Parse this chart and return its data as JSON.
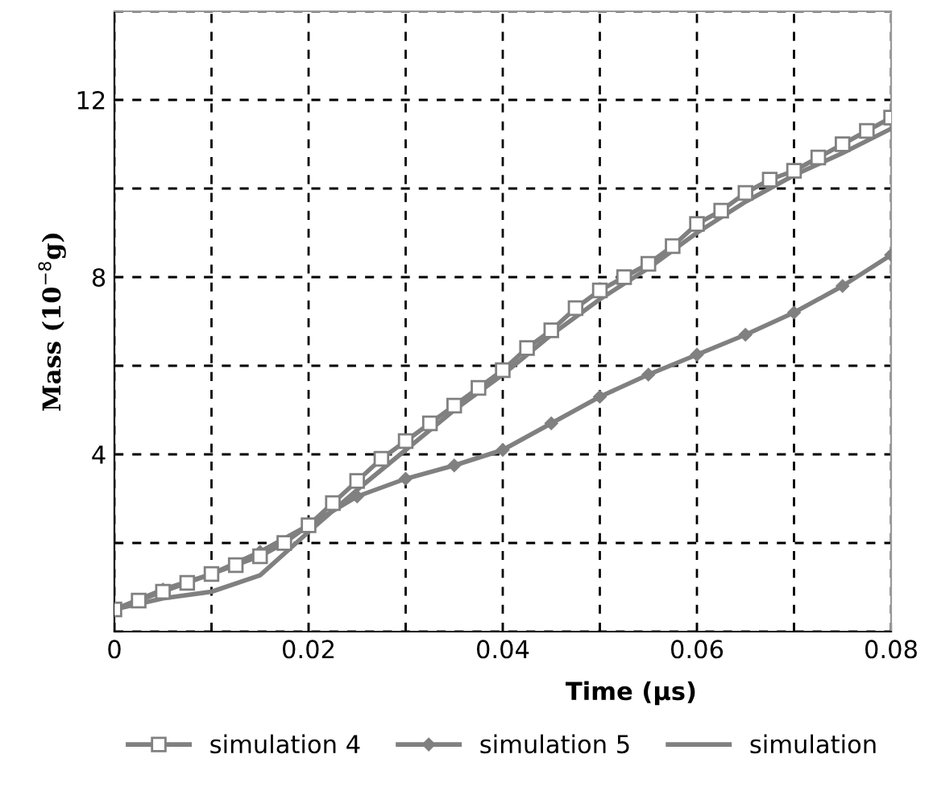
{
  "chart_data": {
    "type": "line",
    "xlabel": "Time (µs)",
    "ylabel": "Mass (10$^{−8}$g)",
    "xlim": [
      0,
      0.08
    ],
    "ylim": [
      0,
      14
    ],
    "xticks": [
      0,
      {
        "value": 0.01,
        "label": null
      },
      0.02,
      {
        "value": 0.03,
        "label": null
      },
      0.04,
      {
        "value": 0.05,
        "label": null
      },
      0.06,
      {
        "value": 0.07,
        "label": null
      },
      0.08
    ],
    "yticks": [
      {
        "value": 0,
        "label": null
      },
      {
        "value": 2,
        "label": null
      },
      4,
      {
        "value": 6,
        "label": null
      },
      8,
      {
        "value": 10,
        "label": null
      },
      12,
      {
        "value": 14,
        "label": null
      }
    ],
    "grid": true,
    "legend": "bottom",
    "series": [
      {
        "name": "simulation 4",
        "color": "#808080",
        "marker": "square",
        "x": [
          0,
          0.0025,
          0.005,
          0.0075,
          0.01,
          0.0125,
          0.015,
          0.0175,
          0.02,
          0.0225,
          0.025,
          0.0275,
          0.03,
          0.0325,
          0.035,
          0.0375,
          0.04,
          0.0425,
          0.045,
          0.0475,
          0.05,
          0.0525,
          0.055,
          0.0575,
          0.06,
          0.0625,
          0.065,
          0.0675,
          0.07,
          0.0725,
          0.075,
          0.0775,
          0.08
        ],
        "values": [
          0.5,
          0.7,
          0.9,
          1.1,
          1.3,
          1.5,
          1.7,
          2.0,
          2.4,
          2.9,
          3.4,
          3.9,
          4.3,
          4.7,
          5.1,
          5.5,
          5.9,
          6.4,
          6.8,
          7.3,
          7.7,
          8.0,
          8.3,
          8.7,
          9.2,
          9.5,
          9.9,
          10.2,
          10.4,
          10.7,
          11.0,
          11.3,
          11.6
        ]
      },
      {
        "name": "simulation 5",
        "color": "#808080",
        "marker": "diamond",
        "x": [
          0,
          0.005,
          0.01,
          0.015,
          0.02,
          0.025,
          0.03,
          0.035,
          0.04,
          0.045,
          0.05,
          0.055,
          0.06,
          0.065,
          0.07,
          0.075,
          0.08
        ],
        "values": [
          0.5,
          0.95,
          1.3,
          1.8,
          2.4,
          3.05,
          3.45,
          3.75,
          4.1,
          4.7,
          5.3,
          5.8,
          6.25,
          6.7,
          7.2,
          7.8,
          8.5
        ]
      },
      {
        "name": "simulation",
        "color": "#808080",
        "marker": "none",
        "x": [
          0,
          0.005,
          0.01,
          0.015,
          0.02,
          0.025,
          0.03,
          0.035,
          0.04,
          0.045,
          0.05,
          0.055,
          0.06,
          0.065,
          0.07,
          0.075,
          0.08
        ],
        "values": [
          0.5,
          0.75,
          0.9,
          1.27,
          2.25,
          3.2,
          4.1,
          5.0,
          5.8,
          6.7,
          7.5,
          8.2,
          9.0,
          9.7,
          10.3,
          10.8,
          11.35
        ]
      }
    ]
  }
}
